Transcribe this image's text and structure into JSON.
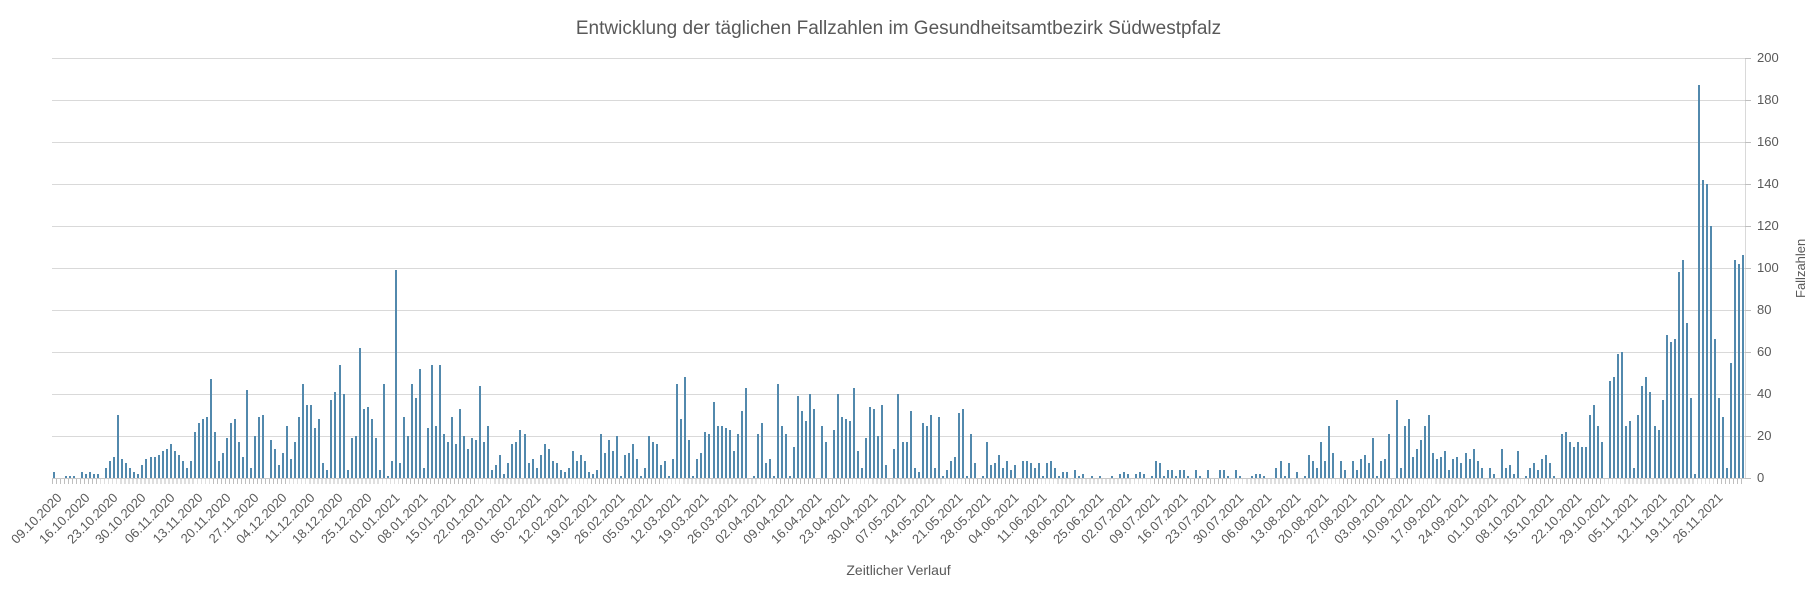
{
  "title": "Entwicklung der täglichen Fallzahlen im Gesundheitsamtbezirk Südwestpfalz",
  "x_axis": {
    "title": "Zeitlicher Verlauf"
  },
  "y_axis": {
    "title": "Fallzahlen",
    "ticks": [
      0,
      20,
      40,
      60,
      80,
      100,
      120,
      140,
      160,
      180,
      200
    ],
    "min": 0,
    "max": 200
  },
  "colors": {
    "bar": "#5289ad",
    "gridline": "#d9d9d9",
    "axis_text": "#595959",
    "tick": "#bfbfbf"
  },
  "chart_data": {
    "type": "bar",
    "title": "Entwicklung der täglichen Fallzahlen im Gesundheitsamtbezirk Südwestpfalz",
    "xlabel": "Zeitlicher Verlauf",
    "ylabel": "Fallzahlen",
    "ylim": [
      0,
      200
    ],
    "grid": true,
    "legend_position": "none",
    "x_start_date": "09.10.2020",
    "label_interval_days": 7,
    "categories": [
      "09.10.2020",
      "16.10.2020",
      "23.10.2020",
      "30.10.2020",
      "06.11.2020",
      "13.11.2020",
      "20.11.2020",
      "27.11.2020",
      "04.12.2020",
      "11.12.2020",
      "18.12.2020",
      "25.12.2020",
      "01.01.2021",
      "08.01.2021",
      "15.01.2021",
      "22.01.2021",
      "29.01.2021",
      "05.02.2021",
      "12.02.2021",
      "19.02.2021",
      "26.02.2021",
      "05.03.2021",
      "12.03.2021",
      "19.03.2021",
      "26.03.2021",
      "02.04.2021",
      "09.04.2021",
      "16.04.2021",
      "23.04.2021",
      "30.04.2021",
      "07.05.2021",
      "14.05.2021",
      "21.05.2021",
      "28.05.2021",
      "04.06.2021",
      "11.06.2021",
      "18.06.2021",
      "25.06.2021",
      "02.07.2021",
      "09.07.2021",
      "16.07.2021",
      "23.07.2021",
      "30.07.2021",
      "06.08.2021",
      "13.08.2021",
      "20.08.2021",
      "27.08.2021",
      "03.09.2021",
      "10.09.2021",
      "17.09.2021",
      "24.09.2021",
      "01.10.2021",
      "08.10.2021",
      "15.10.2021",
      "22.10.2021",
      "29.10.2021",
      "05.11.2021",
      "12.11.2021",
      "19.11.2021",
      "26.11.2021"
    ],
    "daily_values": [
      3,
      0,
      0,
      1,
      1,
      1,
      0,
      3,
      2,
      3,
      2,
      2,
      0,
      5,
      8,
      10,
      30,
      9,
      7,
      5,
      3,
      2,
      6,
      9,
      10,
      10,
      11,
      13,
      14,
      16,
      13,
      11,
      8,
      5,
      8,
      22,
      26,
      28,
      29,
      47,
      22,
      8,
      12,
      19,
      26,
      28,
      17,
      10,
      42,
      5,
      20,
      29,
      30,
      0,
      18,
      14,
      6,
      12,
      25,
      9,
      17,
      29,
      45,
      35,
      35,
      24,
      28,
      7,
      4,
      37,
      41,
      54,
      40,
      4,
      19,
      20,
      62,
      33,
      34,
      28,
      19,
      4,
      45,
      1,
      8,
      99,
      7,
      29,
      20,
      45,
      38,
      52,
      5,
      24,
      54,
      25,
      54,
      21,
      17,
      29,
      16,
      33,
      20,
      14,
      19,
      18,
      44,
      17,
      25,
      4,
      6,
      11,
      2,
      7,
      16,
      17,
      23,
      21,
      7,
      9,
      5,
      11,
      16,
      14,
      8,
      7,
      4,
      3,
      5,
      13,
      8,
      11,
      8,
      3,
      2,
      4,
      21,
      12,
      18,
      13,
      20,
      1,
      11,
      12,
      16,
      9,
      1,
      5,
      20,
      17,
      16,
      6,
      8,
      1,
      9,
      45,
      28,
      48,
      18,
      1,
      9,
      12,
      22,
      21,
      36,
      25,
      25,
      24,
      23,
      13,
      21,
      32,
      43,
      0,
      1,
      21,
      26,
      7,
      9,
      1,
      45,
      25,
      21,
      1,
      15,
      39,
      32,
      27,
      40,
      33,
      0,
      25,
      17,
      0,
      23,
      40,
      29,
      28,
      27,
      43,
      13,
      5,
      19,
      34,
      33,
      20,
      35,
      6,
      0,
      14,
      40,
      17,
      17,
      32,
      5,
      3,
      26,
      25,
      30,
      5,
      29,
      1,
      4,
      8,
      10,
      31,
      33,
      1,
      21,
      7,
      0,
      1,
      17,
      6,
      7,
      11,
      5,
      8,
      4,
      6,
      0,
      8,
      8,
      7,
      5,
      7,
      1,
      7,
      8,
      5,
      1,
      3,
      3,
      0,
      4,
      1,
      2,
      0,
      1,
      0,
      1,
      0,
      0,
      1,
      0,
      2,
      3,
      2,
      0,
      2,
      3,
      2,
      0,
      1,
      8,
      7,
      1,
      4,
      4,
      1,
      4,
      4,
      1,
      0,
      4,
      1,
      0,
      4,
      0,
      0,
      4,
      4,
      1,
      0,
      4,
      1,
      0,
      0,
      1,
      2,
      2,
      1,
      0,
      0,
      5,
      8,
      1,
      7,
      0,
      3,
      0,
      1,
      11,
      8,
      5,
      17,
      8,
      25,
      12,
      0,
      8,
      4,
      0,
      8,
      4,
      9,
      11,
      7,
      19,
      1,
      8,
      9,
      21,
      0,
      37,
      5,
      25,
      28,
      10,
      14,
      18,
      25,
      30,
      12,
      9,
      10,
      13,
      4,
      9,
      10,
      7,
      12,
      9,
      14,
      8,
      5,
      0,
      5,
      2,
      0,
      14,
      5,
      6,
      2,
      13,
      0,
      1,
      5,
      7,
      4,
      9,
      11,
      7,
      1,
      0,
      21,
      22,
      17,
      15,
      17,
      15,
      15,
      30,
      35,
      25,
      17,
      0,
      46,
      48,
      59,
      60,
      25,
      27,
      5,
      30,
      44,
      48,
      41,
      25,
      23,
      37,
      68,
      65,
      66,
      98,
      104,
      74,
      38,
      2,
      187,
      142,
      140,
      120,
      66,
      38,
      29,
      5,
      55,
      104,
      102,
      106
    ]
  }
}
